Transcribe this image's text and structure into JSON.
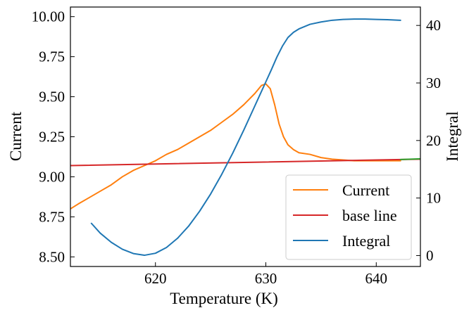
{
  "chart_data": {
    "type": "line",
    "xlabel": "Temperature (K)",
    "ylabel_left": "Current",
    "ylabel_right": "Integral",
    "xlim": [
      612.3,
      644.0
    ],
    "ylim_left": [
      8.44,
      10.06
    ],
    "ylim_right": [
      -1.9,
      43.2
    ],
    "x_ticks": [
      620,
      630,
      640
    ],
    "y_ticks_left": [
      "8.50",
      "8.75",
      "9.00",
      "9.25",
      "9.50",
      "9.75",
      "10.00"
    ],
    "y_ticks_right": [
      0,
      10,
      20,
      30,
      40
    ],
    "grid": false,
    "legend_position": "lower-right",
    "series": [
      {
        "name": "Current",
        "axis": "left",
        "color": "#ff7f0e",
        "points": [
          [
            612.3,
            8.8
          ],
          [
            613,
            8.83
          ],
          [
            614,
            8.87
          ],
          [
            615,
            8.91
          ],
          [
            616,
            8.95
          ],
          [
            617,
            9.0
          ],
          [
            618,
            9.04
          ],
          [
            619,
            9.07
          ],
          [
            620,
            9.1
          ],
          [
            621,
            9.14
          ],
          [
            622,
            9.17
          ],
          [
            623,
            9.21
          ],
          [
            624,
            9.25
          ],
          [
            625,
            9.29
          ],
          [
            626,
            9.34
          ],
          [
            627,
            9.39
          ],
          [
            628,
            9.45
          ],
          [
            629,
            9.52
          ],
          [
            629.6,
            9.57
          ],
          [
            630,
            9.58
          ],
          [
            630.4,
            9.55
          ],
          [
            630.8,
            9.45
          ],
          [
            631.2,
            9.33
          ],
          [
            631.6,
            9.25
          ],
          [
            632,
            9.2
          ],
          [
            632.5,
            9.17
          ],
          [
            633,
            9.15
          ],
          [
            634,
            9.14
          ],
          [
            635,
            9.12
          ],
          [
            636,
            9.11
          ],
          [
            637,
            9.105
          ],
          [
            638,
            9.1
          ],
          [
            639,
            9.1
          ],
          [
            640,
            9.1
          ],
          [
            641,
            9.1
          ],
          [
            642.2,
            9.1
          ]
        ]
      },
      {
        "name": "base line",
        "axis": "left",
        "color": "#d62728",
        "points": [
          [
            612.3,
            9.07
          ],
          [
            644.0,
            9.11
          ]
        ]
      },
      {
        "name": "Integral",
        "axis": "right",
        "color": "#1f77b4",
        "points": [
          [
            614.2,
            5.6
          ],
          [
            615,
            3.9
          ],
          [
            616,
            2.3
          ],
          [
            617,
            1.1
          ],
          [
            618,
            0.35
          ],
          [
            619,
            0.05
          ],
          [
            620,
            0.4
          ],
          [
            621,
            1.4
          ],
          [
            622,
            3.0
          ],
          [
            623,
            5.1
          ],
          [
            624,
            7.7
          ],
          [
            625,
            10.7
          ],
          [
            626,
            14.1
          ],
          [
            627,
            17.8
          ],
          [
            628,
            21.8
          ],
          [
            629,
            26.0
          ],
          [
            630,
            30.2
          ],
          [
            630.5,
            32.3
          ],
          [
            631,
            34.5
          ],
          [
            631.5,
            36.4
          ],
          [
            632,
            37.9
          ],
          [
            632.5,
            38.8
          ],
          [
            633,
            39.4
          ],
          [
            634,
            40.2
          ],
          [
            635,
            40.6
          ],
          [
            636,
            40.9
          ],
          [
            637,
            41.05
          ],
          [
            638,
            41.1
          ],
          [
            639,
            41.1
          ],
          [
            640,
            41.05
          ],
          [
            641,
            41.0
          ],
          [
            642.2,
            40.9
          ]
        ]
      },
      {
        "axis": "left",
        "color": "#2ca02c",
        "points": [
          [
            642.2,
            9.108
          ],
          [
            644.0,
            9.112
          ]
        ]
      }
    ]
  }
}
